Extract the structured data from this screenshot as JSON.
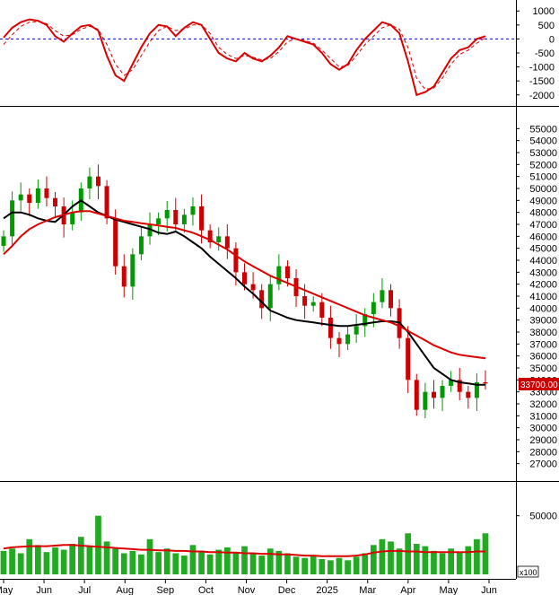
{
  "chart_data": [
    {
      "type": "line",
      "panel": "oscillator",
      "ylim": [
        -2200,
        1200
      ],
      "y_ticks": [
        "1000",
        "500",
        "0",
        "-500",
        "-1000",
        "-1500",
        "-2000"
      ],
      "zero_line": 0,
      "series": [
        {
          "color": "#dd0000",
          "style": "solid",
          "values": [
            50,
            400,
            600,
            700,
            650,
            500,
            100,
            -100,
            200,
            450,
            500,
            300,
            -600,
            -1300,
            -1500,
            -900,
            -300,
            200,
            500,
            450,
            100,
            400,
            600,
            500,
            0,
            -500,
            -700,
            -800,
            -500,
            -700,
            -800,
            -600,
            -300,
            100,
            0,
            -100,
            -200,
            -500,
            -900,
            -1100,
            -900,
            -400,
            0,
            300,
            600,
            500,
            200,
            -800,
            -2000,
            -1900,
            -1700,
            -1200,
            -700,
            -400,
            -300,
            0,
            100
          ]
        },
        {
          "color": "#dd0000",
          "style": "dashed",
          "values": [
            -200,
            150,
            450,
            600,
            620,
            550,
            300,
            100,
            150,
            350,
            450,
            350,
            -200,
            -900,
            -1300,
            -1100,
            -600,
            -100,
            300,
            450,
            300,
            350,
            500,
            500,
            200,
            -300,
            -550,
            -700,
            -600,
            -650,
            -750,
            -700,
            -450,
            -100,
            0,
            -50,
            -150,
            -400,
            -700,
            -1000,
            -950,
            -600,
            -200,
            100,
            400,
            500,
            350,
            -300,
            -1400,
            -1800,
            -1750,
            -1400,
            -900,
            -550,
            -400,
            -150,
            50
          ]
        }
      ]
    },
    {
      "type": "candlestick",
      "panel": "price",
      "ylim": [
        26300,
        56000
      ],
      "y_ticks": [
        "55000",
        "54000",
        "53000",
        "52000",
        "51000",
        "50000",
        "49000",
        "48000",
        "47000",
        "46000",
        "45000",
        "44000",
        "43000",
        "42000",
        "41000",
        "40000",
        "39000",
        "38000",
        "37000",
        "36000",
        "35000",
        "34000",
        "33000",
        "32000",
        "31000",
        "30000",
        "29000",
        "28000",
        "27000"
      ],
      "x_labels": [
        "May",
        "Jun",
        "Jul",
        "Aug",
        "Sep",
        "Oct",
        "Nov",
        "Dec",
        "2025",
        "Mar",
        "Apr",
        "May",
        "Jun"
      ],
      "last_price_label": "33700.00",
      "close": [
        46000,
        49000,
        49500,
        48800,
        50000,
        49200,
        48500,
        47000,
        48000,
        50000,
        51000,
        50200,
        47500,
        43500,
        41800,
        44500,
        46000,
        47000,
        47500,
        48200,
        47000,
        47800,
        48500,
        46500,
        45500,
        46000,
        45000,
        43000,
        42000,
        41500,
        40000,
        42000,
        43500,
        42500,
        41000,
        40200,
        40500,
        39200,
        37500,
        37000,
        37800,
        38500,
        39500,
        40500,
        41500,
        40000,
        37500,
        34000,
        31500,
        33000,
        32500,
        33500,
        34000,
        33000,
        32500,
        33800,
        33700
      ],
      "series": [
        {
          "color": "#000000",
          "values": [
            47500,
            48000,
            48000,
            47800,
            47500,
            47300,
            47200,
            47800,
            48500,
            49000,
            48500,
            48000,
            47700,
            47400,
            47200,
            47000,
            46800,
            46600,
            46300,
            46200,
            46400,
            46000,
            45500,
            45000,
            44300,
            43700,
            43100,
            42500,
            41800,
            41200,
            40500,
            39800,
            39500,
            39200,
            39000,
            38900,
            38800,
            38700,
            38600,
            38500,
            38500,
            38600,
            38700,
            38800,
            38900,
            38900,
            38800,
            38000,
            37000,
            36000,
            35000,
            34500,
            34000,
            33800,
            33700,
            33600,
            33600
          ]
        },
        {
          "color": "#dd0000",
          "values": [
            44500,
            45200,
            46000,
            46600,
            47000,
            47300,
            47600,
            47800,
            48000,
            48100,
            48100,
            47900,
            47700,
            47500,
            47300,
            47200,
            47100,
            47000,
            46900,
            46800,
            46700,
            46500,
            46300,
            46000,
            45700,
            45300,
            44900,
            44400,
            43900,
            43500,
            43100,
            42700,
            42400,
            42100,
            41800,
            41500,
            41200,
            40900,
            40600,
            40300,
            40000,
            39700,
            39400,
            39200,
            39000,
            38800,
            38500,
            38100,
            37700,
            37300,
            36900,
            36600,
            36300,
            36100,
            36000,
            35900,
            35800
          ]
        }
      ]
    },
    {
      "type": "bar",
      "panel": "volume",
      "ylim": [
        0,
        75000
      ],
      "y_ticks": [
        "50000"
      ],
      "unit_label": "x100",
      "bar_color": "#22aa22",
      "values": [
        20000,
        22000,
        18000,
        30000,
        25000,
        19000,
        23000,
        21000,
        26000,
        32000,
        24000,
        50000,
        28000,
        22000,
        18000,
        20000,
        17000,
        30000,
        19000,
        22000,
        18000,
        16000,
        25000,
        20000,
        17000,
        21000,
        23000,
        19000,
        24000,
        18000,
        16000,
        22000,
        20000,
        18000,
        15000,
        14000,
        16000,
        13000,
        12000,
        14000,
        12000,
        15000,
        18000,
        25000,
        30000,
        28000,
        22000,
        35000,
        26000,
        24000,
        20000,
        18000,
        22000,
        19000,
        24000,
        30000,
        35000
      ],
      "series": [
        {
          "color": "#dd0000",
          "values": [
            22000,
            23000,
            23500,
            24000,
            24000,
            24000,
            24500,
            25000,
            25000,
            24500,
            24000,
            23500,
            23000,
            22500,
            22000,
            21500,
            21000,
            21000,
            20500,
            20500,
            20000,
            20000,
            19500,
            19500,
            19000,
            19000,
            18500,
            18500,
            18000,
            18000,
            17500,
            17500,
            17000,
            17000,
            16500,
            16000,
            16000,
            15500,
            15500,
            15500,
            15500,
            16000,
            17000,
            18500,
            19500,
            20000,
            20000,
            19500,
            19500,
            19000,
            19000,
            19000,
            19000,
            19000,
            19000,
            19500,
            19500
          ]
        }
      ]
    }
  ]
}
